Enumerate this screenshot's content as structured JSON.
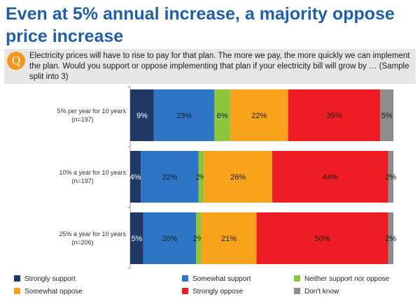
{
  "title": "Even at 5% annual increase, a majority oppose price increase",
  "question": {
    "icon": "question-badge-icon",
    "letter": "Q",
    "text": "Electricity prices will have to rise to pay for that plan. The more we pay, the more quickly we can implement the plan.  Would you support or oppose implementing that plan if your electricity bill will grow by … (Sample split into 3)"
  },
  "chart_data": {
    "type": "bar",
    "orientation": "horizontal",
    "stacked": true,
    "xlim": [
      0,
      100
    ],
    "categories": [
      {
        "label": "5% per year for 10 years",
        "n": "(n=197)"
      },
      {
        "label": "10% a year for 10 years",
        "n": "(n=197)"
      },
      {
        "label": "25% a year for 10 years",
        "n": "(n=206)"
      }
    ],
    "series": [
      {
        "name": "Strongly support",
        "color": "#1f3864",
        "values": [
          9,
          4,
          5
        ],
        "labels": [
          "9%",
          "4%",
          "5%"
        ]
      },
      {
        "name": "Somewhat support",
        "color": "#2e75c6",
        "values": [
          23,
          22,
          20
        ],
        "labels": [
          "23%",
          "22%",
          "20%"
        ]
      },
      {
        "name": "Neither support nor oppose",
        "color": "#8cc63f",
        "values": [
          6,
          2,
          2
        ],
        "labels": [
          "6%",
          "2%",
          "2%"
        ]
      },
      {
        "name": "Somewhat oppose",
        "color": "#f7a21b",
        "values": [
          22,
          26,
          21
        ],
        "labels": [
          "22%",
          "26%",
          "21%"
        ]
      },
      {
        "name": "Strongly oppose",
        "color": "#ee1c25",
        "values": [
          35,
          44,
          50
        ],
        "labels": [
          "35%",
          "44%",
          "50%"
        ]
      },
      {
        "name": "Don't know",
        "color": "#8c8c8c",
        "values": [
          5,
          2,
          2
        ],
        "labels": [
          "5%",
          "2%",
          "2%"
        ]
      }
    ],
    "legend": "bottom"
  }
}
